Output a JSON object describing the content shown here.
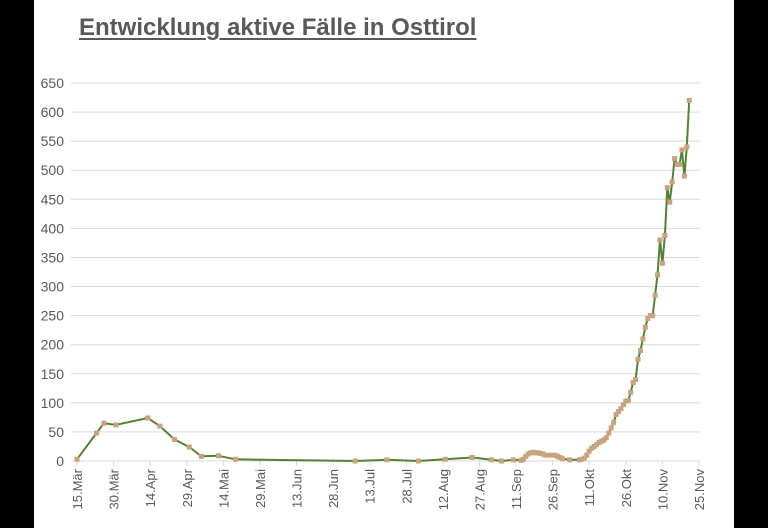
{
  "chart_data": {
    "type": "line",
    "title": "Entwicklung aktive Fälle in Osttirol",
    "xlabel": "",
    "ylabel": "",
    "ylim": [
      0,
      650
    ],
    "yticks": [
      0,
      50,
      100,
      150,
      200,
      250,
      300,
      350,
      400,
      450,
      500,
      550,
      600,
      650
    ],
    "grid": true,
    "legend": null,
    "x_tick_labels": [
      "15.Mär",
      "30.Mär",
      "14.Apr",
      "29.Apr",
      "14.Mai",
      "29.Mai",
      "13.Jun",
      "28.Jun",
      "13.Jul",
      "28.Jul",
      "12.Aug",
      "27.Aug",
      "11.Sep",
      "26.Sep",
      "11.Okt",
      "26.Okt",
      "10.Nov",
      "25.Nov"
    ],
    "colors": {
      "line": "#548235",
      "marker": "#C9A27E",
      "grid": "#D9D9D9",
      "text": "#595959"
    },
    "series": [
      {
        "name": "Aktive Fälle",
        "points": [
          {
            "day": 0,
            "value": 3
          },
          {
            "day": 8,
            "value": 48
          },
          {
            "day": 11,
            "value": 65
          },
          {
            "day": 16,
            "value": 62
          },
          {
            "day": 29,
            "value": 74
          },
          {
            "day": 34,
            "value": 60
          },
          {
            "day": 40,
            "value": 37
          },
          {
            "day": 46,
            "value": 24
          },
          {
            "day": 51,
            "value": 8
          },
          {
            "day": 58,
            "value": 9
          },
          {
            "day": 65,
            "value": 3
          },
          {
            "day": 114,
            "value": 0
          },
          {
            "day": 127,
            "value": 2
          },
          {
            "day": 140,
            "value": 0
          },
          {
            "day": 151,
            "value": 3
          },
          {
            "day": 162,
            "value": 6
          },
          {
            "day": 170,
            "value": 2
          },
          {
            "day": 174,
            "value": 0
          },
          {
            "day": 179,
            "value": 2
          },
          {
            "day": 182,
            "value": 1
          },
          {
            "day": 183,
            "value": 3
          },
          {
            "day": 184,
            "value": 8
          },
          {
            "day": 185,
            "value": 12
          },
          {
            "day": 186,
            "value": 14
          },
          {
            "day": 187,
            "value": 15
          },
          {
            "day": 188,
            "value": 14
          },
          {
            "day": 189,
            "value": 14
          },
          {
            "day": 190,
            "value": 13
          },
          {
            "day": 191,
            "value": 12
          },
          {
            "day": 192,
            "value": 10
          },
          {
            "day": 194,
            "value": 10
          },
          {
            "day": 196,
            "value": 10
          },
          {
            "day": 197,
            "value": 8
          },
          {
            "day": 198,
            "value": 6
          },
          {
            "day": 199,
            "value": 4
          },
          {
            "day": 202,
            "value": 2
          },
          {
            "day": 206,
            "value": 2
          },
          {
            "day": 207,
            "value": 3
          },
          {
            "day": 208,
            "value": 5
          },
          {
            "day": 209,
            "value": 10
          },
          {
            "day": 210,
            "value": 17
          },
          {
            "day": 211,
            "value": 22
          },
          {
            "day": 212,
            "value": 25
          },
          {
            "day": 213,
            "value": 28
          },
          {
            "day": 214,
            "value": 32
          },
          {
            "day": 215,
            "value": 34
          },
          {
            "day": 216,
            "value": 36
          },
          {
            "day": 217,
            "value": 40
          },
          {
            "day": 218,
            "value": 48
          },
          {
            "day": 219,
            "value": 57
          },
          {
            "day": 220,
            "value": 66
          },
          {
            "day": 221,
            "value": 80
          },
          {
            "day": 222,
            "value": 85
          },
          {
            "day": 223,
            "value": 90
          },
          {
            "day": 224,
            "value": 97
          },
          {
            "day": 225,
            "value": 103
          },
          {
            "day": 226,
            "value": 104
          },
          {
            "day": 227,
            "value": 118
          },
          {
            "day": 228,
            "value": 135
          },
          {
            "day": 229,
            "value": 140
          },
          {
            "day": 230,
            "value": 175
          },
          {
            "day": 231,
            "value": 190
          },
          {
            "day": 232,
            "value": 210
          },
          {
            "day": 233,
            "value": 230
          },
          {
            "day": 234,
            "value": 245
          },
          {
            "day": 235,
            "value": 250
          },
          {
            "day": 236,
            "value": 250
          },
          {
            "day": 237,
            "value": 285
          },
          {
            "day": 238,
            "value": 320
          },
          {
            "day": 239,
            "value": 380
          },
          {
            "day": 240,
            "value": 340
          },
          {
            "day": 241,
            "value": 388
          },
          {
            "day": 242,
            "value": 470
          },
          {
            "day": 243,
            "value": 445
          },
          {
            "day": 244,
            "value": 480
          },
          {
            "day": 245,
            "value": 520
          },
          {
            "day": 246,
            "value": 510
          },
          {
            "day": 247,
            "value": 510
          },
          {
            "day": 248,
            "value": 535
          },
          {
            "day": 249,
            "value": 490
          },
          {
            "day": 250,
            "value": 540
          },
          {
            "day": 251,
            "value": 620
          }
        ]
      }
    ]
  }
}
